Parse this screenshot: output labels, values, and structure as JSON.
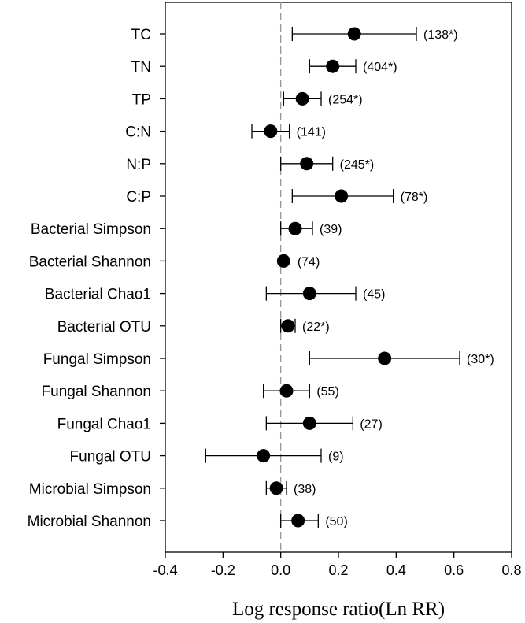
{
  "chart_data": {
    "type": "forest",
    "xlabel": "Log response ratio(Ln RR)",
    "xlim": [
      -0.4,
      0.8
    ],
    "xticks": [
      "-0.4",
      "-0.2",
      "0.0",
      "0.2",
      "0.4",
      "0.6",
      "0.8"
    ],
    "reference_line": 0.0,
    "rows": [
      {
        "label": "TC",
        "mean": 0.255,
        "lower": 0.04,
        "upper": 0.47,
        "annotation": "(138*)"
      },
      {
        "label": "TN",
        "mean": 0.18,
        "lower": 0.1,
        "upper": 0.26,
        "annotation": "(404*)"
      },
      {
        "label": "TP",
        "mean": 0.075,
        "lower": 0.01,
        "upper": 0.14,
        "annotation": "(254*)"
      },
      {
        "label": "C:N",
        "mean": -0.035,
        "lower": -0.1,
        "upper": 0.03,
        "annotation": "(141)"
      },
      {
        "label": "N:P",
        "mean": 0.09,
        "lower": 0.0,
        "upper": 0.18,
        "annotation": "(245*)"
      },
      {
        "label": "C:P",
        "mean": 0.21,
        "lower": 0.04,
        "upper": 0.39,
        "annotation": "(78*)"
      },
      {
        "label": "Bacterial Simpson",
        "mean": 0.05,
        "lower": 0.0,
        "upper": 0.11,
        "annotation": "(39)"
      },
      {
        "label": "Bacterial Shannon",
        "mean": 0.01,
        "lower": 0.01,
        "upper": 0.01,
        "annotation": "(74)"
      },
      {
        "label": "Bacterial Chao1",
        "mean": 0.1,
        "lower": -0.05,
        "upper": 0.26,
        "annotation": "(45)"
      },
      {
        "label": "Bacterial OTU",
        "mean": 0.025,
        "lower": 0.0,
        "upper": 0.05,
        "annotation": "(22*)"
      },
      {
        "label": "Fungal Simpson",
        "mean": 0.36,
        "lower": 0.1,
        "upper": 0.62,
        "annotation": "(30*)"
      },
      {
        "label": "Fungal Shannon",
        "mean": 0.02,
        "lower": -0.06,
        "upper": 0.1,
        "annotation": "(55)"
      },
      {
        "label": "Fungal Chao1",
        "mean": 0.1,
        "lower": -0.05,
        "upper": 0.25,
        "annotation": "(27)"
      },
      {
        "label": "Fungal OTU",
        "mean": -0.06,
        "lower": -0.26,
        "upper": 0.14,
        "annotation": "(9)"
      },
      {
        "label": "Microbial Simpson",
        "mean": -0.015,
        "lower": -0.05,
        "upper": 0.02,
        "annotation": "(38)"
      },
      {
        "label": "Microbial Shannon",
        "mean": 0.06,
        "lower": 0.0,
        "upper": 0.13,
        "annotation": "(50)"
      }
    ]
  }
}
